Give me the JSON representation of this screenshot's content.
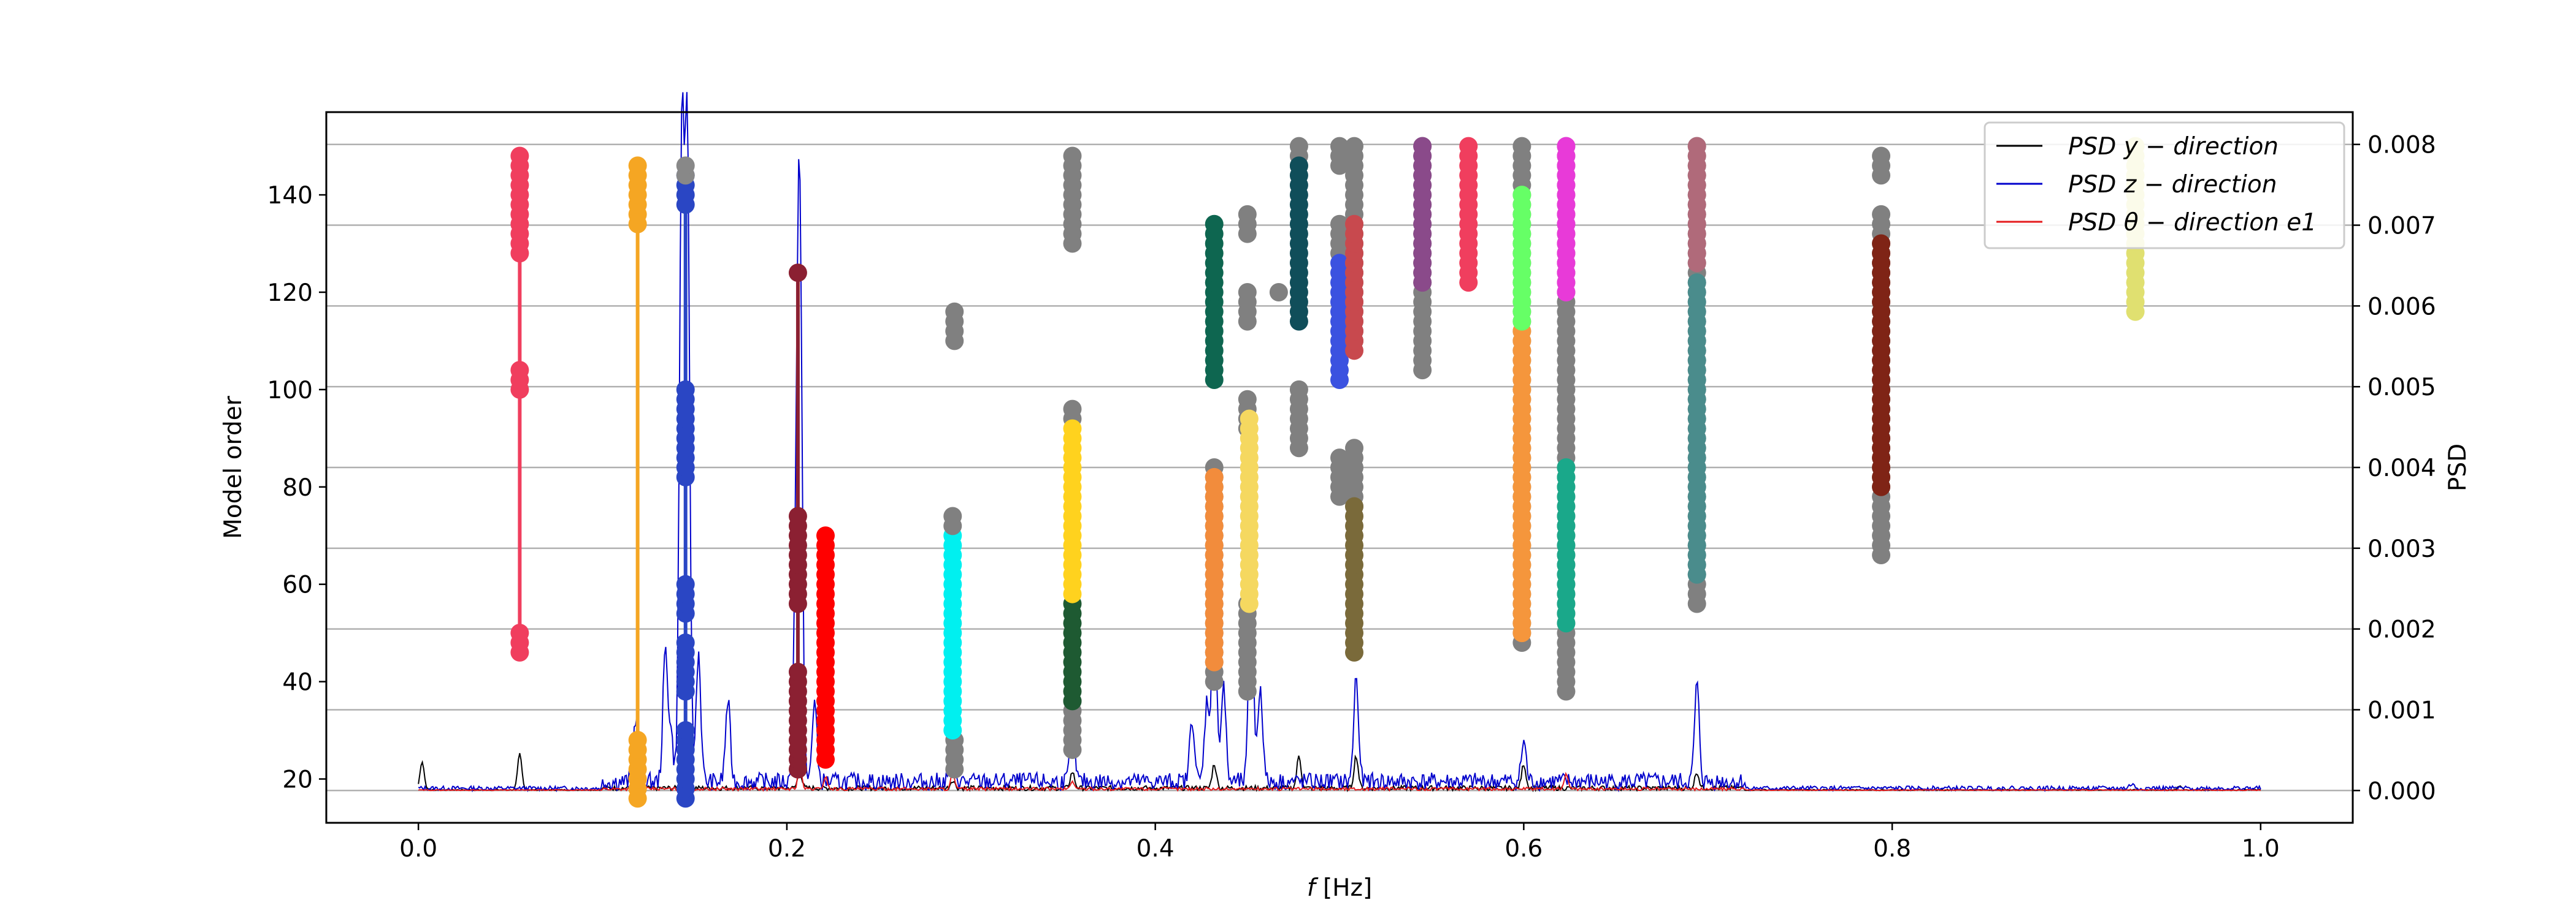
{
  "chart_data": {
    "type": "scatter",
    "title": "",
    "xlabel_italic": "f",
    "xlabel_rest": " [Hz]",
    "ylabel_left": "Model order",
    "ylabel_right": "PSD",
    "xlim": [
      -0.05,
      1.05
    ],
    "ylim_left": [
      11,
      157
    ],
    "ylim_right": [
      -0.0004,
      0.0084
    ],
    "x_ticks": [
      0.0,
      0.2,
      0.4,
      0.6,
      0.8,
      1.0
    ],
    "x_tick_labels": [
      "0.0",
      "0.2",
      "0.4",
      "0.6",
      "0.8",
      "1.0"
    ],
    "y_left_ticks": [
      20,
      40,
      60,
      80,
      100,
      120,
      140
    ],
    "y_left_tick_labels": [
      "20",
      "40",
      "60",
      "80",
      "100",
      "120",
      "140"
    ],
    "y_right_ticks": [
      0.0,
      0.001,
      0.002,
      0.003,
      0.004,
      0.005,
      0.006,
      0.007,
      0.008
    ],
    "y_right_tick_labels": [
      "0.000",
      "0.001",
      "0.002",
      "0.003",
      "0.004",
      "0.005",
      "0.006",
      "0.007",
      "0.008"
    ],
    "grid": "horizontal lines at right-axis ticks",
    "legend_position": "top-right",
    "legend": [
      {
        "label": "PSD y − direction",
        "color": "#000000"
      },
      {
        "label": "PSD z − direction",
        "color": "#0000cc"
      },
      {
        "label": "PSD θ − direction e1",
        "color": "#e41a1c"
      }
    ],
    "stab_groups": [
      {
        "x": 0.055,
        "color": "#f03e5e",
        "ranges": [
          [
            46,
            50
          ],
          [
            100,
            104
          ],
          [
            128,
            148
          ]
        ],
        "line": [
          46,
          148
        ]
      },
      {
        "x": 0.119,
        "color": "#f5a623",
        "ranges": [
          [
            16,
            28
          ],
          [
            134,
            146
          ]
        ],
        "line": [
          16,
          146
        ]
      },
      {
        "x": 0.145,
        "color": "#2a46c4",
        "ranges": [
          [
            16,
            30
          ],
          [
            38,
            48
          ],
          [
            54,
            60
          ],
          [
            82,
            100
          ],
          [
            138,
            144
          ]
        ],
        "line": [
          16,
          146
        ]
      },
      {
        "x": 0.145,
        "color": "#888888",
        "ranges": [
          [
            144,
            146
          ]
        ],
        "line": null
      },
      {
        "x": 0.206,
        "color": "#8b2032",
        "ranges": [
          [
            22,
            42
          ],
          [
            56,
            74
          ],
          [
            124,
            124
          ]
        ],
        "line": [
          22,
          124
        ]
      },
      {
        "x": 0.221,
        "color": "#ff0000",
        "ranges": [
          [
            24,
            70
          ]
        ],
        "line": [
          24,
          70
        ]
      },
      {
        "x": 0.291,
        "color": "#808080",
        "ranges": [
          [
            22,
            28
          ],
          [
            110,
            116
          ]
        ],
        "line": null
      },
      {
        "x": 0.29,
        "color": "#00f0f0",
        "ranges": [
          [
            30,
            70
          ]
        ],
        "line": null
      },
      {
        "x": 0.29,
        "color": "#808080",
        "ranges": [
          [
            72,
            74
          ]
        ],
        "line": null
      },
      {
        "x": 0.355,
        "color": "#808080",
        "ranges": [
          [
            26,
            36
          ],
          [
            94,
            96
          ],
          [
            130,
            148
          ]
        ],
        "line": null
      },
      {
        "x": 0.355,
        "color": "#1e5a32",
        "ranges": [
          [
            36,
            56
          ]
        ],
        "line": null
      },
      {
        "x": 0.355,
        "color": "#ffd21e",
        "ranges": [
          [
            58,
            92
          ]
        ],
        "line": null
      },
      {
        "x": 0.432,
        "color": "#808080",
        "ranges": [
          [
            40,
            84
          ]
        ],
        "line": null
      },
      {
        "x": 0.432,
        "color": "#f28c3c",
        "ranges": [
          [
            44,
            82
          ]
        ],
        "line": null
      },
      {
        "x": 0.432,
        "color": "#0e6650",
        "ranges": [
          [
            102,
            134
          ]
        ],
        "line": null
      },
      {
        "x": 0.45,
        "color": "#808080",
        "ranges": [
          [
            38,
            56
          ],
          [
            92,
            98
          ],
          [
            114,
            120
          ],
          [
            132,
            136
          ]
        ],
        "line": null
      },
      {
        "x": 0.451,
        "color": "#f5d860",
        "ranges": [
          [
            56,
            94
          ]
        ],
        "line": null
      },
      {
        "x": 0.478,
        "color": "#808080",
        "ranges": [
          [
            88,
            100
          ],
          [
            146,
            150
          ]
        ],
        "line": null
      },
      {
        "x": 0.478,
        "color": "#104e5a",
        "ranges": [
          [
            114,
            146
          ]
        ],
        "line": null
      },
      {
        "x": 0.467,
        "color": "#808080",
        "ranges": [
          [
            120,
            120
          ]
        ],
        "line": null
      },
      {
        "x": 0.5,
        "color": "#808080",
        "ranges": [
          [
            78,
            86
          ],
          [
            128,
            134
          ],
          [
            146,
            150
          ]
        ],
        "line": null
      },
      {
        "x": 0.5,
        "color": "#3b52e0",
        "ranges": [
          [
            102,
            126
          ]
        ],
        "line": null
      },
      {
        "x": 0.508,
        "color": "#808080",
        "ranges": [
          [
            76,
            88
          ],
          [
            110,
            150
          ]
        ],
        "line": null
      },
      {
        "x": 0.508,
        "color": "#7a6a3a",
        "ranges": [
          [
            46,
            76
          ]
        ],
        "line": null
      },
      {
        "x": 0.508,
        "color": "#c8494e",
        "ranges": [
          [
            108,
            134
          ]
        ],
        "line": null
      },
      {
        "x": 0.545,
        "color": "#808080",
        "ranges": [
          [
            104,
            150
          ]
        ],
        "line": null
      },
      {
        "x": 0.545,
        "color": "#8a4a8a",
        "ranges": [
          [
            122,
            150
          ]
        ],
        "line": null
      },
      {
        "x": 0.57,
        "color": "#f03e5e",
        "ranges": [
          [
            122,
            150
          ]
        ],
        "line": null
      },
      {
        "x": 0.599,
        "color": "#808080",
        "ranges": [
          [
            48,
            150
          ]
        ],
        "line": null
      },
      {
        "x": 0.599,
        "color": "#f5963c",
        "ranges": [
          [
            50,
            112
          ]
        ],
        "line": null
      },
      {
        "x": 0.599,
        "color": "#66ff66",
        "ranges": [
          [
            114,
            140
          ]
        ],
        "line": null
      },
      {
        "x": 0.623,
        "color": "#808080",
        "ranges": [
          [
            38,
            150
          ]
        ],
        "line": null
      },
      {
        "x": 0.623,
        "color": "#1aa88a",
        "ranges": [
          [
            52,
            84
          ]
        ],
        "line": null
      },
      {
        "x": 0.623,
        "color": "#e83ad8",
        "ranges": [
          [
            120,
            150
          ]
        ],
        "line": null
      },
      {
        "x": 0.694,
        "color": "#808080",
        "ranges": [
          [
            56,
            150
          ]
        ],
        "line": null
      },
      {
        "x": 0.694,
        "color": "#4a8c8c",
        "ranges": [
          [
            62,
            122
          ]
        ],
        "line": null
      },
      {
        "x": 0.694,
        "color": "#b06a7a",
        "ranges": [
          [
            126,
            150
          ]
        ],
        "line": null
      },
      {
        "x": 0.794,
        "color": "#808080",
        "ranges": [
          [
            66,
            136
          ],
          [
            144,
            148
          ]
        ],
        "line": null
      },
      {
        "x": 0.794,
        "color": "#7f2416",
        "ranges": [
          [
            80,
            130
          ]
        ],
        "line": null
      },
      {
        "x": 0.932,
        "color": "#e0e070",
        "ranges": [
          [
            116,
            150
          ]
        ],
        "line": null
      }
    ],
    "psd_peaks_z": [
      [
        0.118,
        0.0008
      ],
      [
        0.134,
        0.0016
      ],
      [
        0.137,
        0.0006
      ],
      [
        0.143,
        0.008
      ],
      [
        0.146,
        0.0078
      ],
      [
        0.152,
        0.0016
      ],
      [
        0.168,
        0.001
      ],
      [
        0.205,
        0.0024
      ],
      [
        0.207,
        0.007
      ],
      [
        0.215,
        0.001
      ],
      [
        0.29,
        0.0004
      ],
      [
        0.355,
        0.0007
      ],
      [
        0.42,
        0.0008
      ],
      [
        0.428,
        0.001
      ],
      [
        0.432,
        0.0025
      ],
      [
        0.437,
        0.0012
      ],
      [
        0.452,
        0.0025
      ],
      [
        0.457,
        0.0012
      ],
      [
        0.509,
        0.0013
      ],
      [
        0.6,
        0.0005
      ],
      [
        0.694,
        0.0012
      ],
      [
        0.93,
        5e-05
      ]
    ],
    "psd_peaks_y": [
      [
        0.002,
        0.00035
      ],
      [
        0.055,
        0.00045
      ],
      [
        0.118,
        0.00025
      ],
      [
        0.207,
        0.0002
      ],
      [
        0.29,
        0.0001
      ],
      [
        0.355,
        0.0002
      ],
      [
        0.432,
        0.0003
      ],
      [
        0.478,
        0.0004
      ],
      [
        0.509,
        0.0004
      ],
      [
        0.6,
        0.0003
      ],
      [
        0.694,
        0.0002
      ],
      [
        0.956,
        5e-05
      ]
    ],
    "psd_peaks_theta": [
      [
        0.118,
        0.0006
      ],
      [
        0.207,
        0.0003
      ],
      [
        0.221,
        0.00015
      ],
      [
        0.29,
        0.0002
      ],
      [
        0.355,
        0.0001
      ],
      [
        0.623,
        0.0002
      ]
    ]
  }
}
